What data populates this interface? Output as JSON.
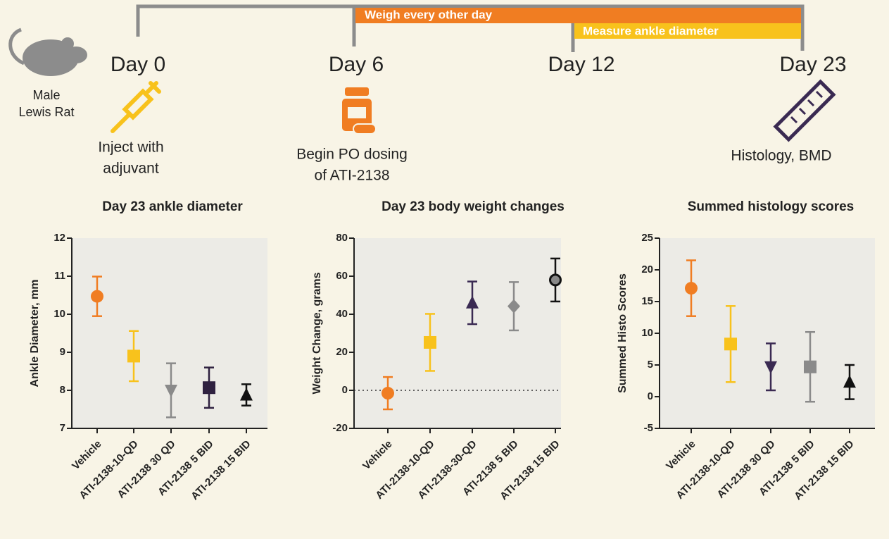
{
  "timeline": {
    "subject": [
      "Male",
      "Lewis Rat"
    ],
    "days": [
      "Day 0",
      "Day 6",
      "Day 12",
      "Day 23"
    ],
    "bars": [
      "Weigh every other day",
      "Measure ankle diameter"
    ],
    "events": [
      [
        "Inject with",
        "adjuvant"
      ],
      [
        "Begin PO dosing",
        "of ATI-2138"
      ],
      [
        "Histology, BMD"
      ]
    ]
  },
  "chart_data": [
    {
      "type": "errorbar",
      "title": "Day 23 ankle diameter",
      "y_label": "Ankle Diameter, mm",
      "categories": [
        "Vehicle",
        "ATI-2138-10-QD",
        "ATI-2138 30 QD",
        "ATI-2138 5 BID",
        "ATI-2138 15 BID"
      ],
      "values": [
        10.47,
        8.9,
        8.0,
        8.07,
        7.88
      ],
      "errors": [
        0.52,
        0.66,
        0.71,
        0.53,
        0.28
      ],
      "colors": [
        "#f07d22",
        "#f8c21c",
        "#8a8a8a",
        "#2f2140",
        "#111111"
      ],
      "markers": [
        "circle",
        "square",
        "triangle-down",
        "square",
        "triangle-up"
      ],
      "ylim": [
        7,
        12
      ],
      "yticks": [
        7,
        8,
        9,
        10,
        11,
        12
      ]
    },
    {
      "type": "errorbar",
      "title": "Day 23 body weight changes",
      "y_label": "Weight Change, grams",
      "categories": [
        "Vehicle",
        "ATI-2138-10-QD",
        "ATI-2138-30-QD",
        "ATI-2138 5 BID",
        "ATI-2138 15 BID"
      ],
      "values": [
        -1.5,
        25.2,
        46.0,
        44.2,
        58.0
      ],
      "errors": [
        8.5,
        15.0,
        11.2,
        12.7,
        11.3
      ],
      "colors": [
        "#f07d22",
        "#f8c21c",
        "#3a2a52",
        "#8a8a8a",
        "#111111"
      ],
      "markers": [
        "circle",
        "square",
        "triangle-up",
        "diamond",
        "ringed-circle"
      ],
      "ylim": [
        -20,
        80
      ],
      "yticks": [
        -20,
        0,
        20,
        40,
        60,
        80
      ],
      "reference_line": 0
    },
    {
      "type": "errorbar",
      "title": "Summed histology scores",
      "y_label": "Summed Histo Scores",
      "categories": [
        "Vehicle",
        "ATI-2138-10-QD",
        "ATI-2138 30 QD",
        "ATI-2138 5 BID",
        "ATI-2138 15 BID"
      ],
      "values": [
        17.1,
        8.3,
        4.7,
        4.7,
        2.3
      ],
      "errors": [
        4.4,
        6.0,
        3.7,
        5.5,
        2.7
      ],
      "colors": [
        "#f07d22",
        "#f8c21c",
        "#3a2a52",
        "#8a8a8a",
        "#111111"
      ],
      "markers": [
        "circle",
        "square",
        "triangle-down",
        "square",
        "triangle-up"
      ],
      "ylim": [
        -5,
        25
      ],
      "yticks": [
        -5,
        0,
        5,
        10,
        15,
        20,
        25
      ]
    }
  ]
}
